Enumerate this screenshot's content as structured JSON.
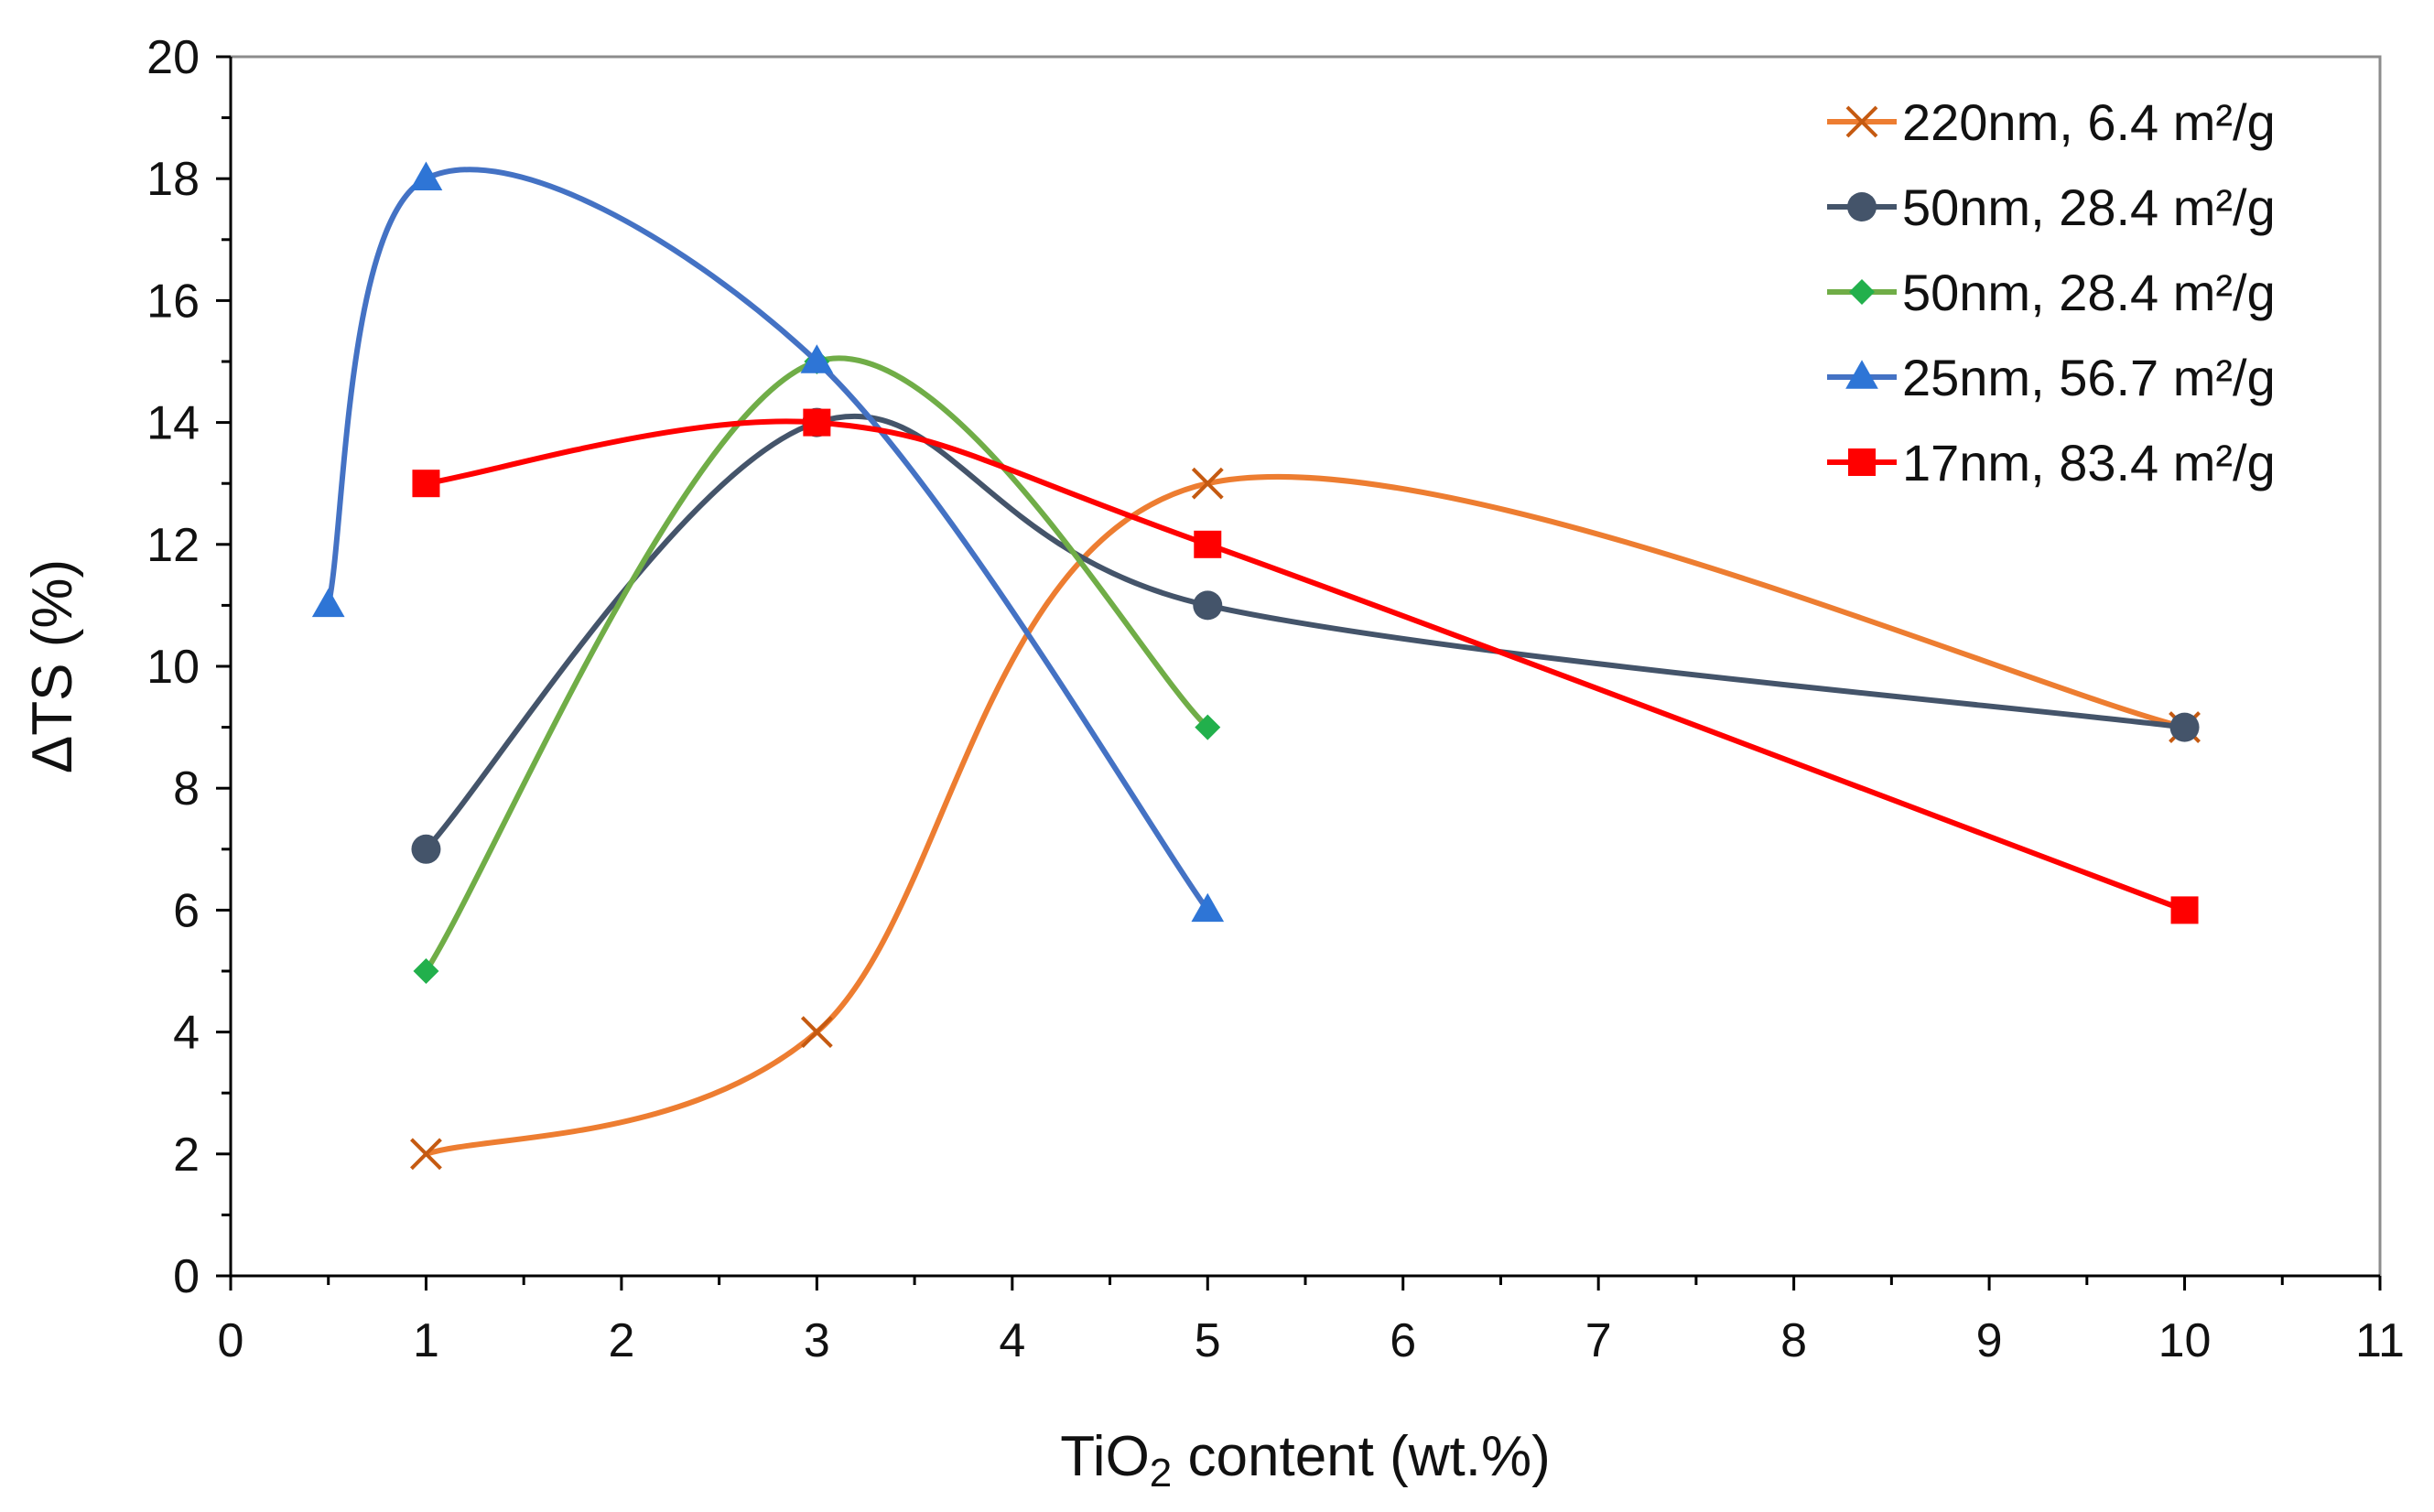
{
  "chart_data": {
    "type": "line",
    "smooth": true,
    "title": "",
    "xlabel_parts": [
      "TiO",
      "2",
      " content (wt.%)"
    ],
    "ylabel": "ΔTS (%)",
    "xlim": [
      0,
      11
    ],
    "ylim": [
      0,
      20
    ],
    "x_ticks": [
      0,
      1,
      2,
      3,
      4,
      5,
      6,
      7,
      8,
      9,
      10,
      11
    ],
    "y_ticks": [
      0,
      2,
      4,
      6,
      8,
      10,
      12,
      14,
      16,
      18,
      20
    ],
    "grid": false,
    "legend_position": "top-right",
    "series": [
      {
        "name": "220nm, 6.4 m²/g",
        "color": "#ED7D31",
        "marker_color": "#C55A11",
        "marker": "x",
        "x": [
          1,
          3,
          5,
          10
        ],
        "y": [
          2,
          4,
          13,
          9
        ]
      },
      {
        "name": "50nm, 28.4 m²/g",
        "color": "#44546A",
        "marker_color": "#44546A",
        "marker": "circle",
        "x": [
          1,
          3,
          5,
          10
        ],
        "y": [
          7,
          14,
          11,
          9
        ]
      },
      {
        "name": "50nm, 28.4 m²/g",
        "color": "#70AD47",
        "marker_color": "#22B04C",
        "marker": "diamond",
        "x": [
          1,
          3,
          5
        ],
        "y": [
          5,
          15,
          9
        ]
      },
      {
        "name": "25nm, 56.7 m²/g",
        "color": "#4472C4",
        "marker_color": "#2E75D6",
        "marker": "triangle",
        "x": [
          0.5,
          1,
          3,
          5
        ],
        "y": [
          11,
          18,
          15,
          6
        ]
      },
      {
        "name": "17nm, 83.4 m²/g",
        "color": "#FF0000",
        "marker_color": "#FF0000",
        "marker": "square",
        "x": [
          1,
          3,
          5,
          10
        ],
        "y": [
          13,
          14,
          12,
          6
        ]
      }
    ]
  }
}
